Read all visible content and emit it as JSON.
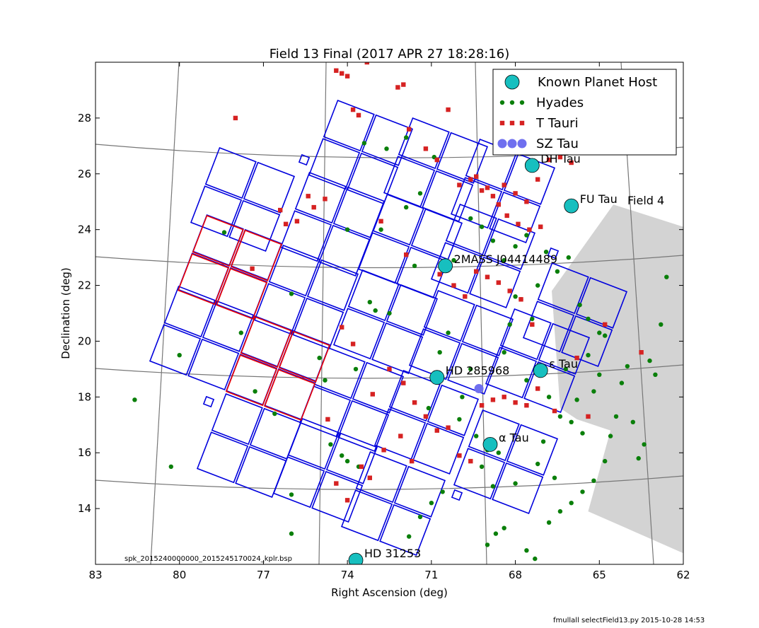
{
  "title": "Field 13 Final (2017 APR 27 18:28:16)",
  "xlabel": "Right Ascension (deg)",
  "ylabel": "Declination (deg)",
  "spk_label": "spk_2015240000000_2015245170024_kplr.bsp",
  "footer": "fmullall selectField13.py 2015-10-28 14:53",
  "field4_label": "Field 4",
  "colors": {
    "planet_host": "#17bfbf",
    "hyades": "#0a7f0a",
    "t_tauri": "#d62222",
    "sz_tau": "#6f6fef",
    "ccd_main": "#0000dd",
    "ccd_highlight": "#ee0000",
    "grid": "#777777",
    "field4_shade": "#d3d3d3"
  },
  "chart_data": {
    "type": "scatter",
    "title": "Field 13 Final (2017 APR 27 18:28:16)",
    "xlabel": "Right Ascension (deg)",
    "ylabel": "Declination (deg)",
    "xlim": [
      83,
      62
    ],
    "ylim": [
      12,
      30
    ],
    "xticks": [
      83,
      80,
      77,
      74,
      71,
      68,
      65,
      62
    ],
    "yticks": [
      14,
      16,
      18,
      20,
      22,
      24,
      26,
      28
    ],
    "legend_position": "top-right",
    "legend": [
      {
        "label": "Known Planet Host",
        "marker": "circle-large",
        "color": "#17bfbf"
      },
      {
        "label": "Hyades",
        "marker": "circle-small",
        "color": "#0a7f0a"
      },
      {
        "label": "T Tauri",
        "marker": "square",
        "color": "#d62222"
      },
      {
        "label": "SZ Tau",
        "marker": "circle-medium",
        "color": "#6f6fef"
      }
    ],
    "planet_hosts": [
      {
        "name": "DH Tau",
        "ra": 67.4,
        "dec": 26.3
      },
      {
        "name": "FU Tau",
        "ra": 66.0,
        "dec": 24.85
      },
      {
        "name": "2MASS J04414489",
        "ra": 70.5,
        "dec": 22.7
      },
      {
        "name": "HD 285968",
        "ra": 70.8,
        "dec": 18.7
      },
      {
        "name": "ε Tau",
        "ra": 67.1,
        "dec": 18.95
      },
      {
        "name": "α Tau",
        "ra": 68.9,
        "dec": 16.3
      },
      {
        "name": "HD 31253",
        "ra": 73.7,
        "dec": 12.15
      }
    ],
    "sz_tau": [
      {
        "ra": 69.3,
        "dec": 18.3
      }
    ],
    "hyades": [
      [
        81.6,
        17.9
      ],
      [
        80.3,
        15.5
      ],
      [
        80.0,
        19.5
      ],
      [
        78.4,
        23.9
      ],
      [
        77.8,
        20.3
      ],
      [
        77.3,
        18.2
      ],
      [
        76.6,
        17.4
      ],
      [
        76.0,
        13.1
      ],
      [
        76.0,
        14.5
      ],
      [
        76.0,
        21.7
      ],
      [
        75.0,
        19.4
      ],
      [
        74.8,
        18.6
      ],
      [
        74.6,
        16.3
      ],
      [
        74.2,
        15.9
      ],
      [
        74.0,
        15.7
      ],
      [
        74.0,
        24.0
      ],
      [
        73.7,
        19.0
      ],
      [
        73.6,
        15.5
      ],
      [
        73.2,
        21.4
      ],
      [
        73.0,
        21.1
      ],
      [
        72.8,
        24.0
      ],
      [
        72.5,
        21.0
      ],
      [
        71.9,
        24.8
      ],
      [
        71.6,
        22.7
      ],
      [
        71.4,
        25.3
      ],
      [
        71.1,
        17.6
      ],
      [
        70.7,
        19.6
      ],
      [
        70.4,
        20.3
      ],
      [
        70.2,
        22.9
      ],
      [
        70.0,
        17.2
      ],
      [
        69.9,
        18.0
      ],
      [
        69.6,
        19.0
      ],
      [
        69.4,
        16.6
      ],
      [
        69.2,
        15.5
      ],
      [
        69.0,
        16.1
      ],
      [
        68.8,
        14.8
      ],
      [
        68.6,
        16.0
      ],
      [
        68.4,
        19.6
      ],
      [
        68.2,
        20.6
      ],
      [
        68.0,
        21.6
      ],
      [
        67.8,
        21.5
      ],
      [
        67.6,
        18.6
      ],
      [
        67.4,
        20.8
      ],
      [
        67.2,
        15.6
      ],
      [
        67.0,
        16.4
      ],
      [
        66.8,
        18.0
      ],
      [
        66.6,
        15.1
      ],
      [
        66.4,
        17.3
      ],
      [
        66.2,
        19.0
      ],
      [
        66.0,
        17.1
      ],
      [
        65.8,
        17.9
      ],
      [
        65.6,
        16.7
      ],
      [
        65.4,
        19.5
      ],
      [
        65.2,
        18.2
      ],
      [
        65.0,
        18.8
      ],
      [
        64.8,
        20.2
      ],
      [
        64.6,
        16.6
      ],
      [
        64.4,
        17.3
      ],
      [
        64.2,
        18.5
      ],
      [
        64.0,
        19.1
      ],
      [
        63.8,
        17.1
      ],
      [
        63.6,
        15.8
      ],
      [
        63.4,
        16.3
      ],
      [
        63.2,
        19.3
      ],
      [
        63.0,
        18.8
      ],
      [
        62.8,
        20.6
      ],
      [
        62.6,
        22.3
      ],
      [
        69.6,
        24.4
      ],
      [
        69.2,
        24.1
      ],
      [
        68.8,
        23.6
      ],
      [
        68.4,
        22.9
      ],
      [
        68.0,
        23.4
      ],
      [
        67.6,
        23.8
      ],
      [
        67.2,
        22.0
      ],
      [
        66.9,
        23.2
      ],
      [
        66.5,
        22.5
      ],
      [
        66.1,
        23.0
      ],
      [
        65.7,
        21.3
      ],
      [
        65.4,
        20.8
      ],
      [
        65.0,
        20.3
      ],
      [
        71.8,
        13.0
      ],
      [
        71.4,
        13.7
      ],
      [
        71.0,
        14.2
      ],
      [
        70.6,
        14.6
      ],
      [
        69.0,
        12.7
      ],
      [
        68.7,
        13.1
      ],
      [
        68.4,
        13.3
      ],
      [
        68.0,
        14.9
      ],
      [
        67.6,
        12.5
      ],
      [
        67.3,
        12.2
      ],
      [
        66.8,
        13.5
      ],
      [
        66.4,
        13.9
      ],
      [
        66.0,
        14.2
      ],
      [
        65.6,
        14.6
      ],
      [
        65.2,
        15.0
      ],
      [
        64.8,
        15.7
      ],
      [
        73.4,
        27.1
      ],
      [
        72.6,
        26.9
      ],
      [
        71.9,
        27.3
      ],
      [
        70.9,
        26.6
      ]
    ],
    "t_tauri": [
      [
        78.0,
        28.0
      ],
      [
        77.4,
        22.6
      ],
      [
        76.4,
        24.7
      ],
      [
        76.2,
        24.2
      ],
      [
        75.8,
        24.3
      ],
      [
        75.4,
        25.2
      ],
      [
        75.2,
        24.8
      ],
      [
        74.8,
        25.1
      ],
      [
        74.4,
        29.7
      ],
      [
        74.2,
        29.6
      ],
      [
        74.0,
        29.5
      ],
      [
        73.8,
        28.3
      ],
      [
        73.6,
        28.1
      ],
      [
        73.3,
        30.0
      ],
      [
        73.0,
        30.1
      ],
      [
        72.2,
        29.1
      ],
      [
        72.0,
        29.2
      ],
      [
        71.8,
        27.6
      ],
      [
        71.2,
        26.9
      ],
      [
        70.8,
        26.5
      ],
      [
        70.4,
        28.3
      ],
      [
        70.0,
        25.6
      ],
      [
        69.6,
        25.8
      ],
      [
        69.2,
        25.4
      ],
      [
        68.8,
        25.2
      ],
      [
        68.4,
        25.6
      ],
      [
        68.0,
        25.3
      ],
      [
        67.6,
        25.0
      ],
      [
        67.2,
        25.8
      ],
      [
        66.8,
        26.5
      ],
      [
        66.4,
        26.6
      ],
      [
        66.0,
        26.4
      ],
      [
        72.8,
        24.3
      ],
      [
        71.9,
        23.1
      ],
      [
        70.7,
        22.4
      ],
      [
        70.2,
        22.0
      ],
      [
        69.8,
        21.6
      ],
      [
        69.4,
        22.5
      ],
      [
        69.0,
        22.3
      ],
      [
        68.6,
        22.1
      ],
      [
        68.2,
        21.8
      ],
      [
        67.8,
        21.5
      ],
      [
        67.4,
        20.6
      ],
      [
        74.2,
        20.5
      ],
      [
        73.8,
        19.9
      ],
      [
        73.1,
        18.1
      ],
      [
        72.5,
        19.0
      ],
      [
        72.0,
        18.5
      ],
      [
        71.6,
        17.8
      ],
      [
        71.2,
        17.3
      ],
      [
        70.8,
        16.8
      ],
      [
        70.4,
        16.9
      ],
      [
        70.0,
        15.9
      ],
      [
        69.6,
        15.7
      ],
      [
        69.2,
        17.7
      ],
      [
        68.8,
        17.9
      ],
      [
        68.4,
        18.0
      ],
      [
        68.0,
        17.8
      ],
      [
        67.6,
        17.7
      ],
      [
        67.2,
        18.3
      ],
      [
        66.6,
        17.5
      ],
      [
        65.8,
        19.4
      ],
      [
        65.4,
        17.3
      ],
      [
        64.8,
        20.6
      ],
      [
        63.5,
        19.6
      ],
      [
        74.7,
        17.2
      ],
      [
        74.4,
        14.9
      ],
      [
        74.0,
        14.3
      ],
      [
        73.5,
        15.5
      ],
      [
        73.2,
        15.1
      ],
      [
        72.7,
        16.1
      ],
      [
        72.1,
        16.6
      ],
      [
        71.7,
        15.7
      ],
      [
        69.4,
        25.9
      ],
      [
        69.0,
        25.5
      ],
      [
        68.6,
        24.9
      ],
      [
        68.3,
        24.5
      ],
      [
        67.9,
        24.2
      ],
      [
        67.5,
        24.0
      ],
      [
        67.1,
        24.1
      ]
    ],
    "field4_polygon": [
      [
        64.5,
        24.9
      ],
      [
        62.0,
        24.1
      ],
      [
        62.0,
        12.4
      ],
      [
        65.4,
        13.9
      ],
      [
        64.6,
        16.8
      ],
      [
        65.8,
        17.2
      ],
      [
        66.4,
        17.6
      ],
      [
        66.7,
        21.8
      ]
    ]
  }
}
